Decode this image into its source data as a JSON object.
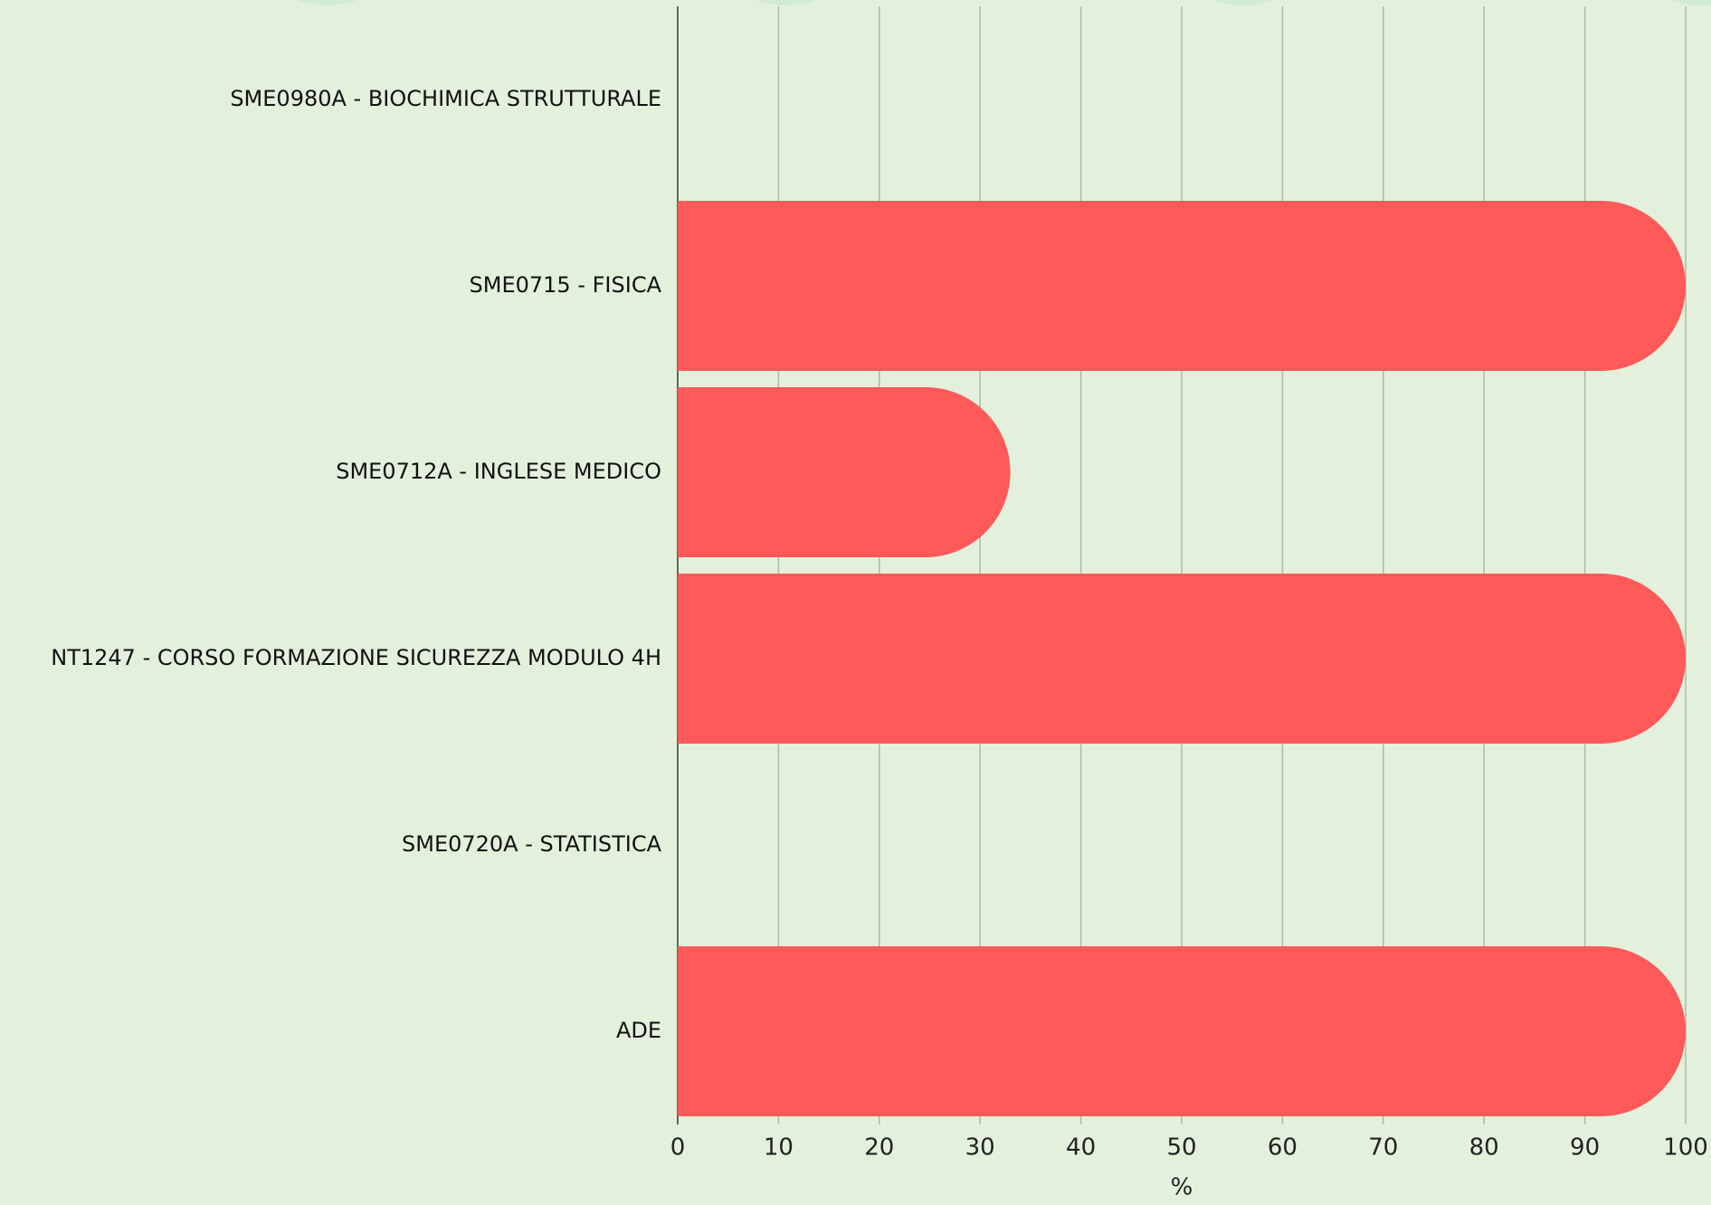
{
  "chart_data": {
    "type": "hbar",
    "x_label": "%",
    "categories": [
      "SME0980A - BIOCHIMICA STRUTTURALE",
      "SME0715 - FISICA",
      "SME0712A - INGLESE MEDICO",
      "NT1247 - CORSO FORMAZIONE SICUREZZA MODULO 4H",
      "SME0720A - STATISTICA",
      "ADE"
    ],
    "values": [
      0,
      100,
      33,
      100,
      0,
      100
    ],
    "color": "#ff5a5a",
    "xlim": [
      0,
      100
    ],
    "xticks": [
      0,
      10,
      20,
      30,
      40,
      50,
      60,
      70,
      80,
      90,
      100
    ],
    "grid": true
  }
}
